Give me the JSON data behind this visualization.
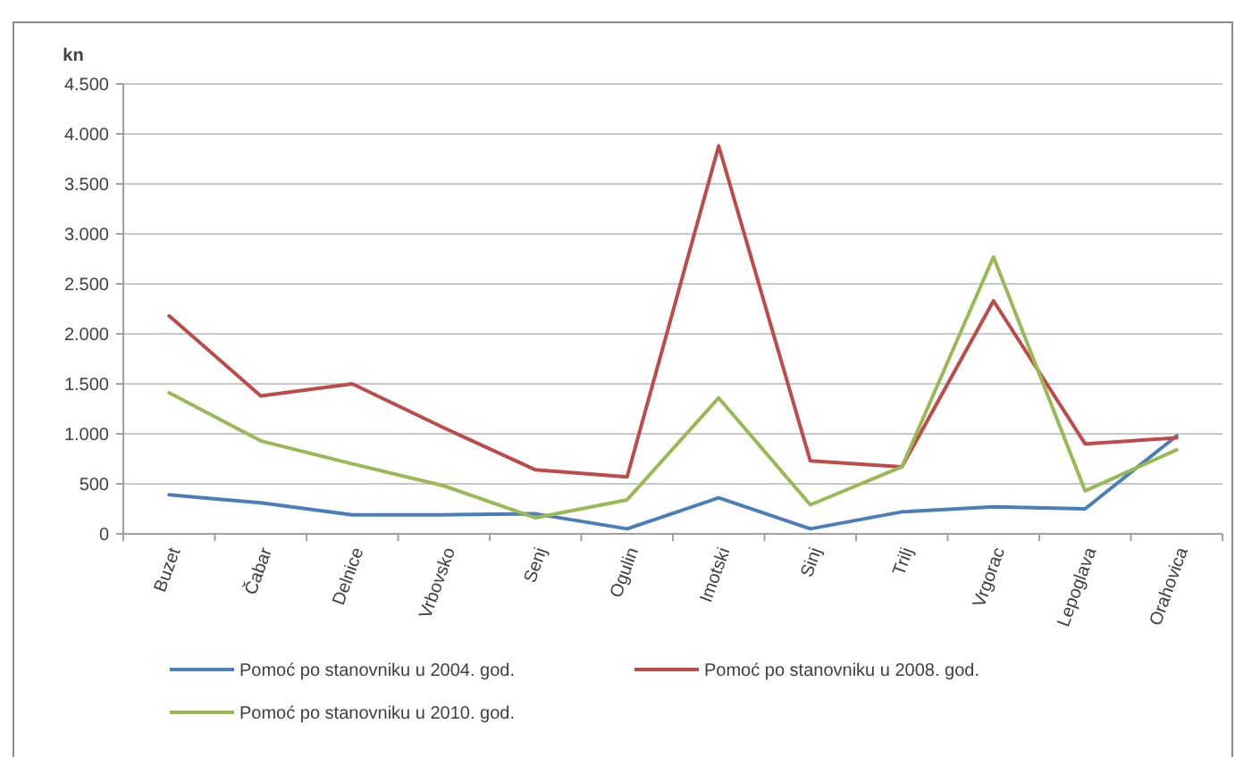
{
  "chart_data": {
    "type": "line",
    "ylabel": "kn",
    "categories": [
      "Buzet",
      "Čabar",
      "Delnice",
      "Vrbovsko",
      "Senj",
      "Ogulin",
      "Imotski",
      "Sinj",
      "Trilj",
      "Vrgorac",
      "Lepoglava",
      "Orahovica"
    ],
    "series": [
      {
        "name": "Pomoć po stanovniku u 2004. god.",
        "color": "#4a7ebb",
        "values": [
          390,
          310,
          190,
          190,
          200,
          50,
          360,
          50,
          220,
          270,
          250,
          980
        ]
      },
      {
        "name": "Pomoć po stanovniku u 2008. god.",
        "color": "#be4b48",
        "values": [
          2180,
          1380,
          1500,
          1060,
          640,
          570,
          3880,
          730,
          670,
          2330,
          900,
          960
        ]
      },
      {
        "name": "Pomoć po stanovniku u 2010. god.",
        "color": "#98b954",
        "values": [
          1410,
          930,
          700,
          480,
          160,
          340,
          1360,
          290,
          670,
          2770,
          430,
          840
        ]
      }
    ],
    "ylim": [
      0,
      4500
    ],
    "yticks": [
      0,
      {
        "value": 500,
        "label": "500"
      },
      {
        "value": 1000,
        "label": "1.000"
      },
      {
        "value": 1500,
        "label": "1.500"
      },
      {
        "value": 2000,
        "label": "2.000"
      },
      {
        "value": 2500,
        "label": "2.500"
      },
      {
        "value": 3000,
        "label": "3.000"
      },
      {
        "value": 3500,
        "label": "3.500"
      },
      {
        "value": 4000,
        "label": "4.000"
      },
      {
        "value": 4500,
        "label": "4.500"
      }
    ],
    "grid": "y",
    "legend": "bottom",
    "marker": "none",
    "line_style": "solid"
  }
}
